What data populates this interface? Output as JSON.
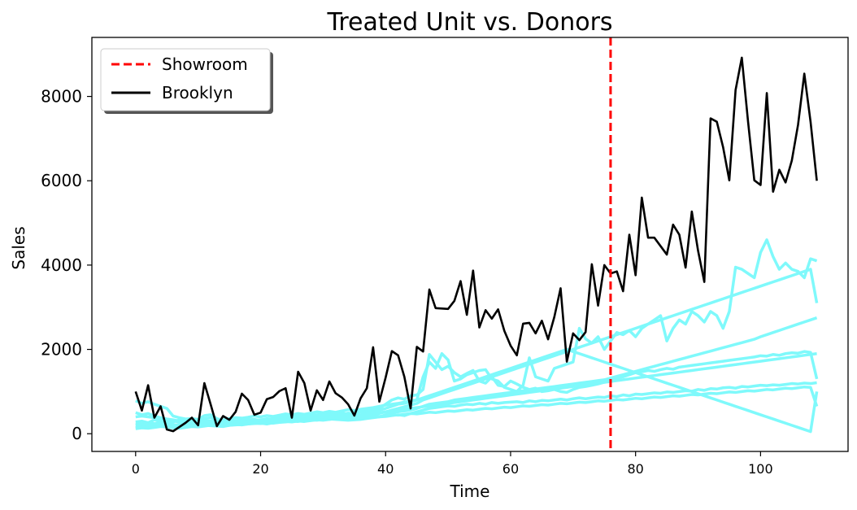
{
  "chart_data": {
    "type": "line",
    "title": "Treated Unit vs. Donors",
    "xlabel": "Time",
    "ylabel": "Sales",
    "xlim": [
      -7,
      114
    ],
    "ylim": [
      -420,
      9400
    ],
    "xticks": [
      0,
      20,
      40,
      60,
      80,
      100
    ],
    "yticks": [
      0,
      2000,
      4000,
      6000,
      8000
    ],
    "grid": false,
    "legend_position": "top-left",
    "colors": {
      "treated": "#000000",
      "donor": "#7ff9fb",
      "intervention": "#ff0000"
    },
    "intervention": {
      "name": "Showroom",
      "x": 76
    },
    "treated": {
      "name": "Brooklyn",
      "x_start": 0,
      "values": [
        1000,
        550,
        1150,
        380,
        650,
        100,
        60,
        160,
        260,
        380,
        200,
        1200,
        700,
        180,
        420,
        330,
        520,
        950,
        800,
        450,
        500,
        820,
        870,
        1010,
        1080,
        380,
        1470,
        1200,
        550,
        1030,
        800,
        1240,
        960,
        860,
        700,
        430,
        840,
        1080,
        2050,
        760,
        1330,
        1960,
        1860,
        1350,
        600,
        2060,
        1950,
        3420,
        2980,
        2970,
        2960,
        3150,
        3620,
        2820,
        3870,
        2520,
        2930,
        2730,
        2950,
        2440,
        2090,
        1860,
        2610,
        2630,
        2380,
        2680,
        2240,
        2770,
        3450,
        1710,
        2380,
        2220,
        2410,
        4020,
        3040,
        4000,
        3800,
        3850,
        3380,
        4720,
        3760,
        5600,
        4650,
        4650,
        4450,
        4250,
        4960,
        4720,
        3940,
        5270,
        4340,
        3600,
        7480,
        7400,
        6800,
        6010,
        8150,
        8920,
        7400,
        6010,
        5900,
        8080,
        5740,
        6260,
        5960,
        6480,
        7330,
        8540,
        7400,
        6000
      ]
    },
    "donors": [
      {
        "x_start": 0,
        "values": [
          280,
          300,
          260,
          330,
          310,
          300,
          280,
          330,
          300,
          290,
          320,
          310,
          300,
          330,
          310,
          290,
          300,
          340,
          320,
          310,
          330,
          320,
          340,
          330,
          340,
          320,
          350,
          340,
          330,
          360,
          350,
          340,
          360,
          380,
          350,
          370,
          390,
          380,
          420,
          400,
          410,
          430,
          450,
          430,
          480,
          520,
          560,
          600,
          620,
          640,
          660,
          650,
          680,
          700,
          690,
          720,
          700,
          740,
          720,
          740,
          750,
          760,
          740,
          780,
          760,
          790,
          780,
          800,
          820,
          800,
          830,
          850,
          830,
          850,
          870,
          860,
          900,
          880,
          920,
          900,
          940,
          930,
          950,
          970,
          960,
          990,
          980,
          1000,
          1020,
          1010,
          1050,
          1030,
          1070,
          1060,
          1090,
          1100,
          1080,
          1120,
          1110,
          1130,
          1150,
          1140,
          1160,
          1150,
          1170,
          1190,
          1180,
          1200,
          1190,
          1210
        ]
      },
      {
        "x_start": 0,
        "values": [
          780,
          720,
          760,
          700,
          650,
          600,
          420,
          380,
          350,
          360,
          340,
          430,
          450,
          360,
          300,
          320,
          310,
          300,
          280,
          300,
          320,
          340,
          360,
          380,
          410,
          400,
          420,
          410,
          440,
          450,
          460,
          470,
          480,
          490,
          470,
          500,
          520,
          540,
          560,
          600,
          700,
          800,
          850,
          820,
          900,
          920,
          1050,
          1880,
          1700,
          1520,
          1600,
          1450,
          1350,
          1430,
          1500,
          1250,
          1200,
          1350,
          1150,
          1120,
          1250,
          1180,
          1100,
          1050,
          1080,
          1000,
          1020,
          1050,
          1000,
          980,
          1050,
          1100,
          1120,
          1150,
          1180,
          1220,
          1250,
          1320,
          1350,
          1400,
          1450,
          1470,
          1500,
          1480,
          1520,
          1550,
          1530,
          1580,
          1600,
          1620,
          1640,
          1660,
          1680,
          1700,
          1720,
          1740,
          1760,
          1780,
          1800,
          1820,
          1850,
          1840,
          1880,
          1860,
          1900,
          1920,
          1910,
          1950,
          1930,
          1300
        ]
      },
      {
        "x_start": 0,
        "values": [
          250,
          230,
          260,
          240,
          280,
          230,
          200,
          220,
          250,
          270,
          230,
          280,
          300,
          290,
          270,
          280,
          300,
          290,
          330,
          340,
          310,
          360,
          340,
          380,
          350,
          400,
          380,
          420,
          400,
          440,
          420,
          450,
          470,
          450,
          490,
          470,
          510,
          490,
          530,
          560,
          600,
          650,
          700,
          720,
          760,
          800,
          1350,
          1700,
          1550,
          1900,
          1750,
          1250,
          1300,
          1400,
          1450,
          1500,
          1520,
          1300,
          1250,
          1100,
          1050,
          1000,
          1150,
          1800,
          1350,
          1300,
          1250,
          1550,
          1600,
          1650,
          1700,
          2500,
          2250,
          2150,
          2300,
          2000,
          2200,
          2400,
          2350,
          2450,
          2300,
          2500,
          2600,
          2700,
          2800,
          2200,
          2500,
          2700,
          2600,
          2900,
          2800,
          2650,
          2900,
          2800,
          2500,
          2900,
          3950,
          3900,
          3800,
          3700,
          4300,
          4600,
          4200,
          3900,
          4050,
          3900,
          3850,
          3700,
          4150,
          4100
        ]
      },
      {
        "x_start": 0,
        "values": [
          400,
          420,
          400,
          380,
          360,
          320,
          300,
          280,
          250,
          260,
          240,
          300,
          290,
          270,
          250,
          260,
          270,
          280,
          300,
          320,
          330,
          350,
          340,
          360,
          380,
          400,
          380,
          420,
          400,
          380,
          360,
          350,
          340,
          330,
          320,
          330,
          340,
          360,
          380,
          400,
          450,
          500,
          520,
          540,
          560,
          600,
          650,
          700,
          720,
          740,
          760,
          800,
          820,
          840,
          860,
          880,
          900,
          920,
          940,
          960,
          980,
          1000,
          1020,
          1040,
          1060,
          1080,
          1100,
          1120,
          1140,
          1160,
          1180,
          1200,
          1220,
          1240,
          1260,
          1280,
          1320,
          1360,
          1400,
          1440,
          1480,
          1520,
          1560,
          1600,
          1640,
          1680,
          1720,
          1760,
          1800,
          1840,
          1880,
          1920,
          1960,
          2000,
          2040,
          2080,
          2120,
          2160,
          2200,
          2240,
          2300,
          2350,
          2400,
          2450,
          2500,
          2550,
          2600,
          2650,
          2700,
          2750
        ]
      },
      {
        "x_start": 0,
        "values": [
          150,
          180,
          160,
          170,
          200,
          180,
          150,
          140,
          160,
          180,
          170,
          200,
          190,
          180,
          170,
          200,
          210,
          220,
          230,
          240,
          250,
          230,
          260,
          270,
          280,
          300,
          290,
          310,
          330,
          320,
          340,
          360,
          350,
          370,
          380,
          360,
          400,
          420,
          440,
          480,
          520,
          560,
          600,
          640,
          680,
          720,
          800,
          850,
          900,
          950,
          1000,
          1050,
          1100,
          1150,
          1200,
          1250,
          1300,
          1350,
          1400,
          1450,
          1500,
          1550,
          1600,
          1650,
          1700,
          1750,
          1800,
          1850,
          1900,
          1950,
          2000,
          2050,
          2100,
          2150,
          2200,
          2250,
          2300,
          2350,
          2400,
          2450,
          2500,
          2550,
          2600,
          2650,
          2700,
          2750,
          2800,
          2850,
          2900,
          2950,
          3000,
          3050,
          3100,
          3150,
          3200,
          3250,
          3300,
          3350,
          3400,
          3450,
          3500,
          3550,
          3600,
          3650,
          3700,
          3750,
          3800,
          3850,
          3900,
          3100
        ]
      },
      {
        "x_start": 0,
        "values": [
          200,
          220,
          210,
          230,
          250,
          240,
          220,
          200,
          210,
          230,
          220,
          240,
          260,
          250,
          240,
          260,
          280,
          270,
          290,
          310,
          300,
          320,
          310,
          330,
          350,
          340,
          360,
          350,
          370,
          390,
          380,
          400,
          420,
          410,
          430,
          450,
          440,
          460,
          480,
          500,
          520,
          540,
          560,
          580,
          600,
          620,
          640,
          660,
          680,
          700,
          720,
          740,
          760,
          780,
          800,
          820,
          840,
          860,
          880,
          900,
          920,
          940,
          960,
          980,
          1000,
          1020,
          1040,
          1060,
          1080,
          1100,
          1120,
          1140,
          1160,
          1180,
          1200,
          1220,
          1240,
          1260,
          1280,
          1300,
          1320,
          1340,
          1360,
          1380,
          1400,
          1420,
          1440,
          1460,
          1480,
          1500,
          1520,
          1540,
          1560,
          1580,
          1600,
          1620,
          1640,
          1660,
          1680,
          1700,
          1720,
          1740,
          1760,
          1780,
          1800,
          1820,
          1840,
          1860,
          1880,
          1900
        ]
      },
      {
        "x_start": 0,
        "values": [
          120,
          140,
          130,
          150,
          170,
          160,
          140,
          130,
          150,
          170,
          160,
          180,
          200,
          190,
          180,
          200,
          220,
          210,
          230,
          250,
          240,
          260,
          250,
          270,
          290,
          280,
          300,
          290,
          310,
          330,
          320,
          340,
          360,
          350,
          370,
          390,
          380,
          400,
          420,
          410,
          430,
          450,
          440,
          460,
          480,
          470,
          490,
          510,
          500,
          520,
          540,
          530,
          550,
          570,
          560,
          580,
          600,
          590,
          610,
          630,
          620,
          640,
          660,
          650,
          670,
          690,
          680,
          700,
          720,
          710,
          730,
          750,
          740,
          760,
          780,
          770,
          790,
          810,
          800,
          820,
          840,
          830,
          850,
          870,
          860,
          880,
          900,
          890,
          910,
          930,
          920,
          940,
          960,
          950,
          970,
          990,
          980,
          1000,
          1020,
          1010,
          1030,
          1050,
          1040,
          1060,
          1080,
          1070,
          1090,
          1110,
          1100,
          650
        ]
      },
      {
        "x_start": 0,
        "values": [
          500,
          450,
          480,
          420,
          380,
          350,
          330,
          300,
          320,
          350,
          330,
          360,
          380,
          350,
          330,
          360,
          380,
          370,
          390,
          420,
          400,
          430,
          410,
          440,
          470,
          450,
          480,
          460,
          490,
          520,
          500,
          530,
          510,
          540,
          570,
          550,
          580,
          600,
          620,
          650,
          680,
          700,
          720,
          750,
          780,
          800,
          850,
          900,
          950,
          1000,
          1050,
          1100,
          1150,
          1200,
          1250,
          1300,
          1350,
          1400,
          1450,
          1500,
          1550,
          1600,
          1650,
          1700,
          1750,
          1800,
          1850,
          1900,
          1950,
          2000,
          1950,
          1900,
          1850,
          1800,
          1750,
          1700,
          1650,
          1600,
          1550,
          1500,
          1450,
          1400,
          1350,
          1300,
          1250,
          1200,
          1150,
          1100,
          1050,
          1000,
          950,
          900,
          850,
          800,
          750,
          700,
          650,
          600,
          550,
          500,
          450,
          400,
          350,
          300,
          250,
          200,
          150,
          100,
          50,
          1000
        ]
      }
    ]
  }
}
